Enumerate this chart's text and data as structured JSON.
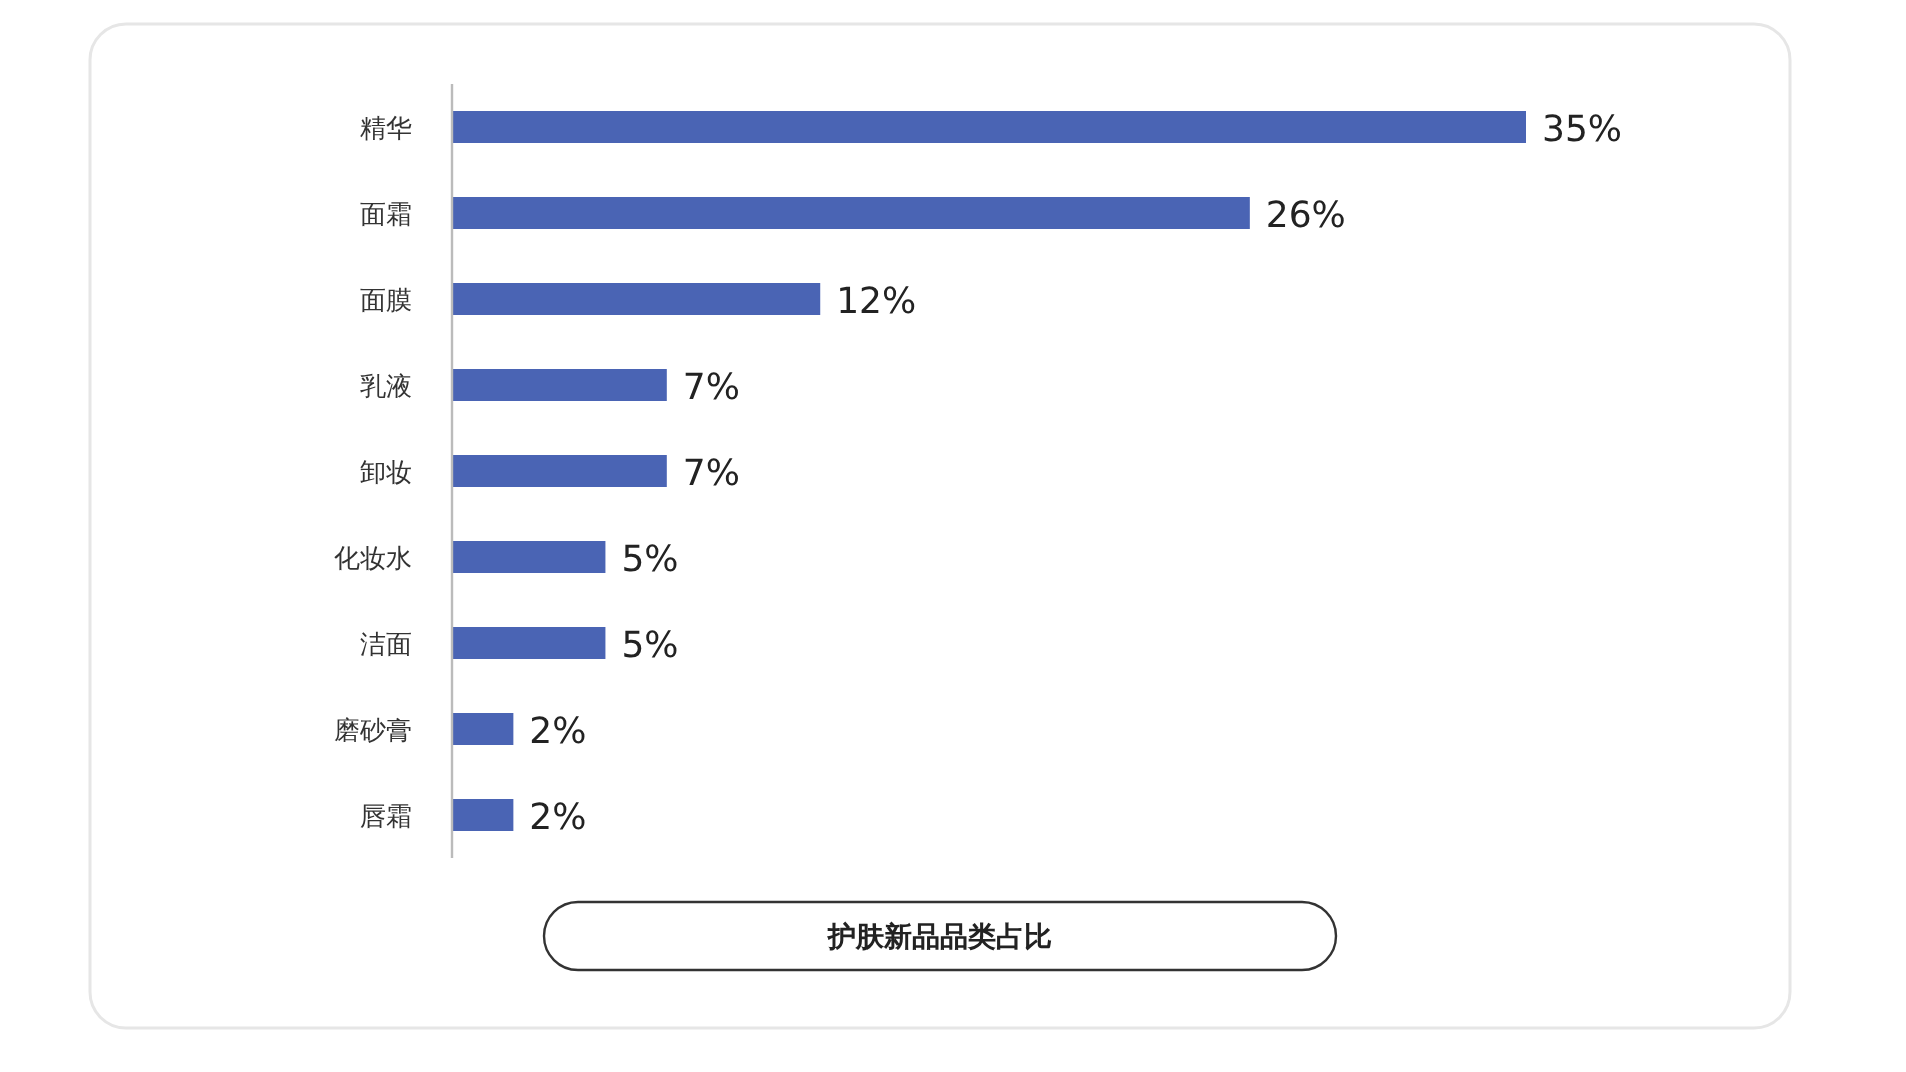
{
  "chart_data": {
    "type": "bar",
    "orientation": "horizontal",
    "title": "护肤新品品类占比",
    "categories": [
      "精华",
      "面霜",
      "面膜",
      "乳液",
      "卸妆",
      "化妆水",
      "洁面",
      "磨砂膏",
      "唇霜"
    ],
    "values": [
      35,
      26,
      12,
      7,
      7,
      5,
      5,
      2,
      2
    ],
    "value_labels": [
      "35%",
      "26%",
      "12%",
      "7%",
      "7%",
      "5%",
      "5%",
      "2%",
      "2%"
    ],
    "color": "#4a64b4"
  }
}
